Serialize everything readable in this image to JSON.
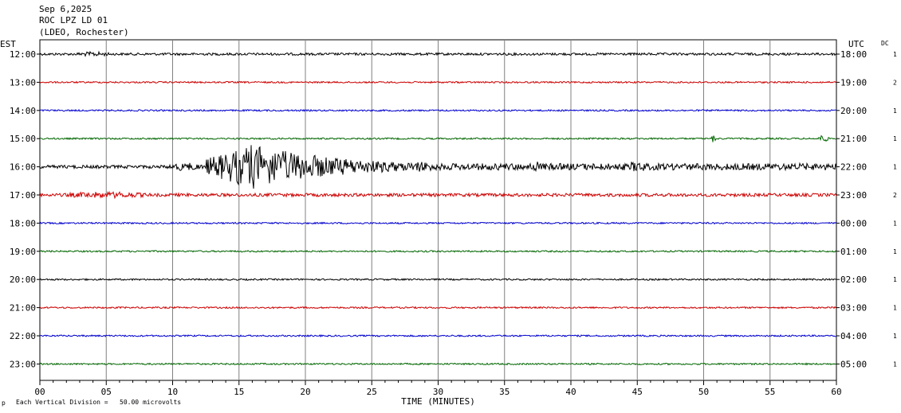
{
  "header": {
    "date": "Sep 6,2025",
    "station": "ROC LPZ LD 01",
    "network": "(LDEO, Rochester)"
  },
  "left_label": "EST",
  "right_label": "UTC",
  "dc_label": "DC",
  "footer": {
    "division_text": "Each Vertical Division =   50.00 microvolts",
    "corner_mark": "p"
  },
  "chart_data": {
    "type": "line",
    "xlabel": "TIME (MINUTES)",
    "x_ticks": [
      "00",
      "05",
      "10",
      "15",
      "20",
      "25",
      "30",
      "35",
      "40",
      "45",
      "50",
      "55",
      "60"
    ],
    "xlim": [
      0,
      60
    ],
    "rows": [
      {
        "est": "12:00",
        "utc": "18:00",
        "dc": "1",
        "color": "#000000",
        "amplitude": 1.5
      },
      {
        "est": "13:00",
        "utc": "19:00",
        "dc": "2",
        "color": "#cc0000",
        "amplitude": 1.0
      },
      {
        "est": "14:00",
        "utc": "20:00",
        "dc": "1",
        "color": "#0000cc",
        "amplitude": 1.0
      },
      {
        "est": "15:00",
        "utc": "21:00",
        "dc": "1",
        "color": "#006600",
        "amplitude": 1.0
      },
      {
        "est": "16:00",
        "utc": "22:00",
        "dc": "1",
        "color": "#000000",
        "amplitude": 2.0
      },
      {
        "est": "17:00",
        "utc": "23:00",
        "dc": "2",
        "color": "#cc0000",
        "amplitude": 2.0
      },
      {
        "est": "18:00",
        "utc": "00:00",
        "dc": "1",
        "color": "#0000cc",
        "amplitude": 1.0
      },
      {
        "est": "19:00",
        "utc": "01:00",
        "dc": "1",
        "color": "#006600",
        "amplitude": 1.0
      },
      {
        "est": "20:00",
        "utc": "02:00",
        "dc": "1",
        "color": "#000000",
        "amplitude": 1.0
      },
      {
        "est": "21:00",
        "utc": "03:00",
        "dc": "1",
        "color": "#cc0000",
        "amplitude": 1.0
      },
      {
        "est": "22:00",
        "utc": "04:00",
        "dc": "1",
        "color": "#0000cc",
        "amplitude": 1.0
      },
      {
        "est": "23:00",
        "utc": "05:00",
        "dc": "1",
        "color": "#006600",
        "amplitude": 1.0
      }
    ],
    "events": [
      {
        "row": 0,
        "start_min": 2.0,
        "end_min": 6.0,
        "peak": 3
      },
      {
        "row": 3,
        "start_min": 50.5,
        "end_min": 51.0,
        "peak": 5
      },
      {
        "row": 3,
        "start_min": 58.5,
        "end_min": 59.5,
        "peak": 5
      },
      {
        "row": 4,
        "start_min": 9.5,
        "end_min": 60.0,
        "peak": 28
      },
      {
        "row": 5,
        "start_min": 0.0,
        "end_min": 10.0,
        "peak": 4
      }
    ],
    "grid": true
  }
}
